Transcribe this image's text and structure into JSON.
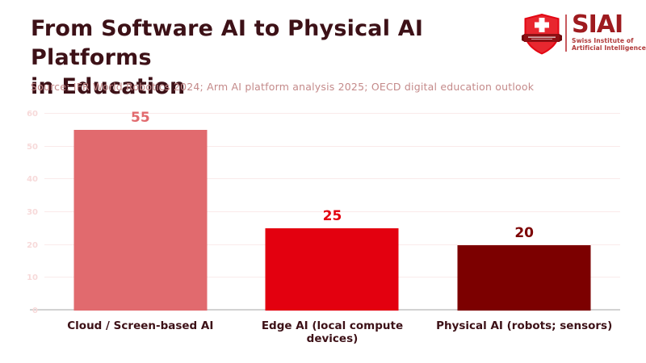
{
  "header": {
    "title_line1": "From Software AI to Physical AI Platforms",
    "title_line2": "in Education",
    "source": "Source: IFR World Robotics 2024; Arm AI platform analysis 2025; OECD digital education outlook"
  },
  "logo": {
    "wordmark": "SIAI",
    "tagline_line1": "Swiss Institute of",
    "tagline_line2": "Artificial Intelligence",
    "shield_icon": "swiss-shield-cross-ribbon-icon",
    "brand_red": "#e30613",
    "wordmark_red": "#9e1b1f"
  },
  "chart_data": {
    "type": "bar",
    "title": "From Software AI to Physical AI Platforms in Education",
    "categories": [
      "Cloud / Screen-based AI",
      "Edge AI (local compute devices)",
      "Physical AI (robots; sensors)"
    ],
    "values": [
      55,
      25,
      20
    ],
    "bar_colors": [
      "#e16a6e",
      "#e3000f",
      "#7c0000"
    ],
    "value_label_colors": [
      "#e16a6e",
      "#e3000f",
      "#7c0000"
    ],
    "xlabel": "",
    "ylabel": "",
    "ylim": [
      0,
      60
    ],
    "yticks": [
      0,
      10,
      20,
      30,
      40,
      50,
      60
    ],
    "grid": true,
    "legend": false
  },
  "colors": {
    "title_text": "#3d1117",
    "source_text": "#c48a8a",
    "ytick_text": "#f7dada",
    "gridline": "#faeaea",
    "axis_line": "#d2d2d2",
    "background": "#ffffff"
  }
}
